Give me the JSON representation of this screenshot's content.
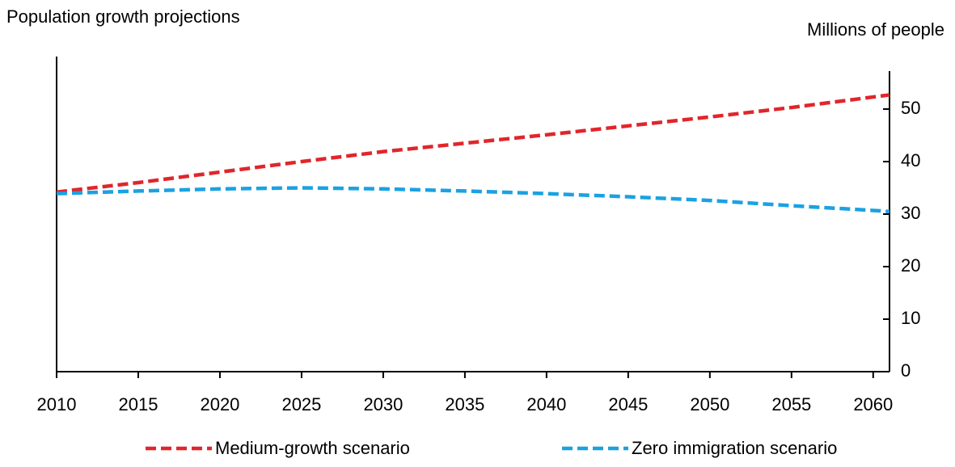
{
  "chart_data": {
    "type": "line",
    "title": "Population growth projections",
    "y_axis_label": "Millions of people",
    "x": [
      2010,
      2015,
      2020,
      2025,
      2030,
      2035,
      2040,
      2045,
      2050,
      2055,
      2060,
      2061
    ],
    "series": [
      {
        "name": "Medium-growth scenario",
        "color": "#e0262b",
        "values": [
          34.2,
          36.0,
          38.0,
          40.0,
          41.9,
          43.5,
          45.1,
          46.8,
          48.5,
          50.3,
          52.3,
          52.7
        ]
      },
      {
        "name": "Zero immigration scenario",
        "color": "#1ba1e2",
        "values": [
          33.9,
          34.4,
          34.8,
          35.0,
          34.8,
          34.4,
          33.9,
          33.3,
          32.6,
          31.6,
          30.7,
          30.5
        ]
      }
    ],
    "xlim": [
      2010,
      2061
    ],
    "xticks": [
      2010,
      2015,
      2020,
      2025,
      2030,
      2035,
      2040,
      2045,
      2050,
      2055,
      2060
    ],
    "ylim": [
      0,
      60
    ],
    "yticks": [
      0,
      10,
      20,
      30,
      40,
      50
    ],
    "y_axis_side": "right",
    "legend": "bottom",
    "grid": false
  }
}
